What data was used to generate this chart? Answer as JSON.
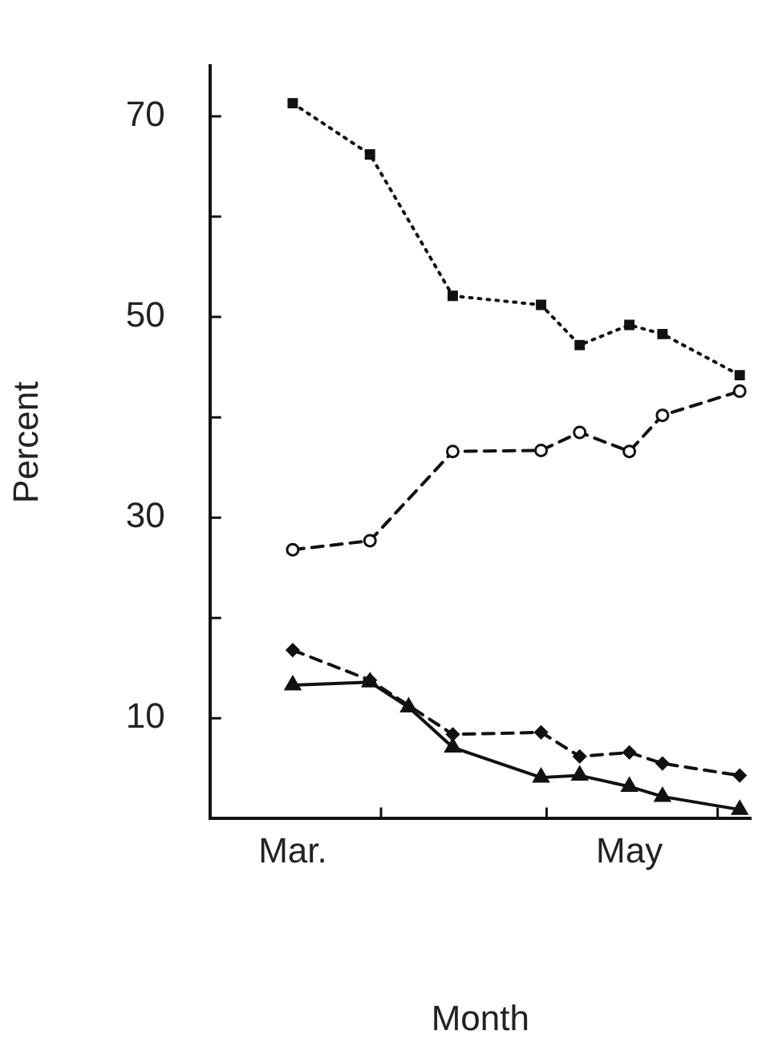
{
  "chart_data": {
    "type": "line",
    "xlabel": "Month",
    "ylabel": "Percent",
    "xlim": [
      "--03-01",
      "--06-07"
    ],
    "ylim": [
      0,
      75
    ],
    "xticks": [
      {
        "value": "--03-16",
        "label": "Mar."
      },
      {
        "value": "--04-01",
        "label": null
      },
      {
        "value": "--05-01",
        "label": null
      },
      {
        "value": "--05-16",
        "label": "May"
      },
      {
        "value": "--06-01",
        "label": null
      }
    ],
    "yticks": [
      10,
      {
        "value": 20,
        "label": null
      },
      30,
      {
        "value": 40,
        "label": null
      },
      50,
      {
        "value": 60,
        "label": null
      },
      70
    ],
    "grid": false,
    "legend": false,
    "series": [
      {
        "color": "#111111",
        "marker": "square",
        "line_style": "dotted",
        "x": [
          "--03-16",
          "--03-30",
          "--04-14",
          "--04-30",
          "--05-07",
          "--05-16",
          "--05-22",
          "--06-05"
        ],
        "values": [
          71.3,
          66.2,
          52.1,
          51.2,
          47.2,
          49.2,
          48.3,
          44.2
        ]
      },
      {
        "color": "#111111",
        "marker": "circle",
        "line_style": "dashed",
        "x": [
          "--03-16",
          "--03-30",
          "--04-14",
          "--04-30",
          "--05-07",
          "--05-16",
          "--05-22",
          "--06-05"
        ],
        "values": [
          26.8,
          27.7,
          36.6,
          36.7,
          38.5,
          36.6,
          40.2,
          42.6
        ]
      },
      {
        "color": "#111111",
        "marker": "diamond",
        "line_style": "dashed",
        "x": [
          "--03-16",
          "--03-30",
          "--04-14",
          "--04-30",
          "--05-07",
          "--05-16",
          "--05-22",
          "--06-05"
        ],
        "values": [
          16.8,
          13.8,
          8.4,
          8.6,
          6.2,
          6.6,
          5.5,
          4.3
        ]
      },
      {
        "color": "#111111",
        "marker": "triangle",
        "line_style": "solid",
        "x": [
          "--03-16",
          "--03-30",
          "--04-06",
          "--04-14",
          "--04-30",
          "--05-07",
          "--05-16",
          "--05-22",
          "--06-05"
        ],
        "values": [
          13.3,
          13.6,
          11.1,
          7.1,
          4.1,
          4.3,
          3.2,
          2.2,
          0.9
        ]
      }
    ]
  }
}
